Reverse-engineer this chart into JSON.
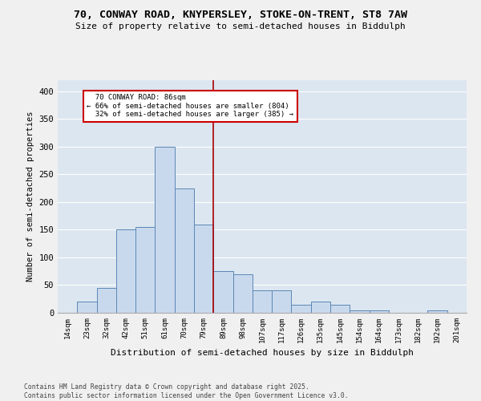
{
  "title_line1": "70, CONWAY ROAD, KNYPERSLEY, STOKE-ON-TRENT, ST8 7AW",
  "title_line2": "Size of property relative to semi-detached houses in Biddulph",
  "xlabel": "Distribution of semi-detached houses by size in Biddulph",
  "ylabel": "Number of semi-detached properties",
  "categories": [
    "14sqm",
    "23sqm",
    "32sqm",
    "42sqm",
    "51sqm",
    "61sqm",
    "70sqm",
    "79sqm",
    "89sqm",
    "98sqm",
    "107sqm",
    "117sqm",
    "126sqm",
    "135sqm",
    "145sqm",
    "154sqm",
    "164sqm",
    "173sqm",
    "182sqm",
    "192sqm",
    "201sqm"
  ],
  "values": [
    0,
    20,
    45,
    150,
    155,
    300,
    225,
    160,
    75,
    70,
    40,
    40,
    15,
    20,
    15,
    5,
    5,
    0,
    0,
    5,
    0
  ],
  "bar_color": "#c9d9ed",
  "bar_edge_color": "#5b87b5",
  "background_color": "#dce6f0",
  "grid_color": "#ffffff",
  "property_label": "70 CONWAY ROAD: 86sqm",
  "pct_smaller": 66,
  "pct_smaller_count": 804,
  "pct_larger": 32,
  "pct_larger_count": 385,
  "vline_bin_index": 7,
  "vline_color": "#aa0000",
  "annotation_box_color": "#cc0000",
  "ylim": [
    0,
    420
  ],
  "yticks": [
    0,
    50,
    100,
    150,
    200,
    250,
    300,
    350,
    400
  ],
  "fig_facecolor": "#f0f0f0",
  "footer_line1": "Contains HM Land Registry data © Crown copyright and database right 2025.",
  "footer_line2": "Contains public sector information licensed under the Open Government Licence v3.0."
}
